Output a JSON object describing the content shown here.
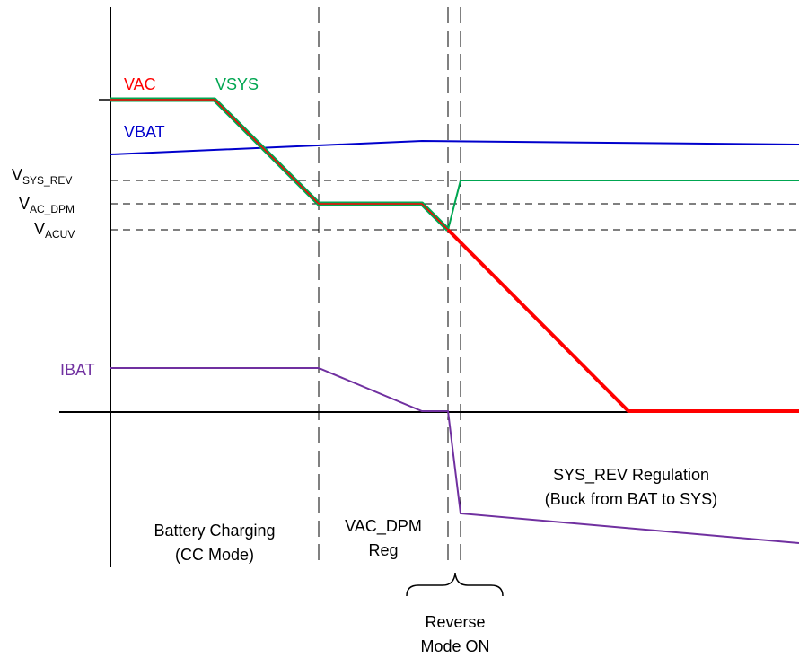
{
  "curves": {
    "vac": {
      "label": "VAC",
      "color": "#ff0000"
    },
    "vsys": {
      "label": "VSYS",
      "color": "#00a651"
    },
    "vbat": {
      "label": "VBAT",
      "color": "#0000cc"
    },
    "ibat": {
      "label": "IBAT",
      "color": "#7030a0"
    }
  },
  "axis_levels": {
    "vsys_rev": {
      "main": "V",
      "sub": "SYS_REV"
    },
    "vac_dpm": {
      "main": "V",
      "sub": "AC_DPM"
    },
    "vacuv": {
      "main": "V",
      "sub": "ACUV"
    }
  },
  "regions": {
    "charging": [
      "Battery Charging",
      "(CC Mode)"
    ],
    "vac_dpm_reg": [
      "VAC_DPM",
      "Reg"
    ],
    "sys_rev": [
      "SYS_REV Regulation",
      "(Buck from BAT to SYS)"
    ],
    "reverse_mode": [
      "Reverse",
      "Mode ON"
    ]
  },
  "axis_color": "#000000"
}
